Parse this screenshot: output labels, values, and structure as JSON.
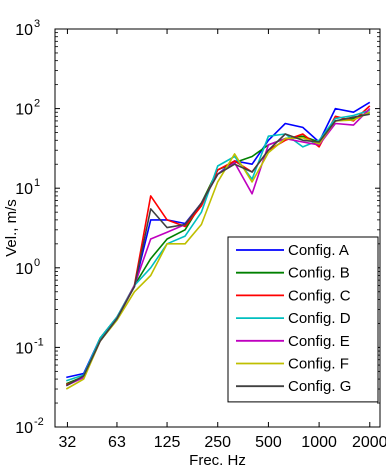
{
  "chart_data": {
    "type": "line",
    "xlabel": "Frec. Hz",
    "ylabel": "Vel., m/s",
    "xscale": "log",
    "yscale": "log",
    "xlim": [
      27,
      2300
    ],
    "ylim": [
      0.01,
      1000
    ],
    "grid": false,
    "legend_position": "bottom-right",
    "x_ticks": [
      32,
      63,
      125,
      250,
      500,
      1000,
      2000
    ],
    "x_tick_labels": [
      "32",
      "63",
      "125",
      "250",
      "500",
      "1000",
      "2000"
    ],
    "y_ticks": [
      0.01,
      0.1,
      1,
      10,
      100,
      1000
    ],
    "y_tick_labels": [
      {
        "base": "10",
        "exp": "-2"
      },
      {
        "base": "10",
        "exp": "-1"
      },
      {
        "base": "10",
        "exp": "0"
      },
      {
        "base": "10",
        "exp": "1"
      },
      {
        "base": "10",
        "exp": "2"
      },
      {
        "base": "10",
        "exp": "3"
      }
    ],
    "x": [
      31.5,
      40,
      50,
      63,
      80,
      100,
      125,
      160,
      200,
      250,
      315,
      400,
      500,
      630,
      800,
      1000,
      1250,
      1600,
      2000
    ],
    "series": [
      {
        "name": "Config. A",
        "color": "#0000ff",
        "values": [
          0.042,
          0.047,
          0.13,
          0.24,
          0.58,
          4.0,
          4.0,
          3.6,
          6.5,
          15,
          22,
          20,
          40,
          65,
          58,
          38,
          100,
          90,
          120
        ]
      },
      {
        "name": "Config. B",
        "color": "#008000",
        "values": [
          0.035,
          0.043,
          0.13,
          0.24,
          0.6,
          1.3,
          2.3,
          3.0,
          6.5,
          17,
          21,
          25,
          35,
          42,
          45,
          38,
          70,
          75,
          90
        ]
      },
      {
        "name": "Config. C",
        "color": "#ff0000",
        "values": [
          0.034,
          0.042,
          0.12,
          0.23,
          0.6,
          8.0,
          4.0,
          3.3,
          6.0,
          17,
          22,
          16,
          30,
          40,
          48,
          33,
          80,
          70,
          108
        ]
      },
      {
        "name": "Config. D",
        "color": "#00bfbf",
        "values": [
          0.038,
          0.045,
          0.13,
          0.24,
          0.6,
          1.0,
          2.0,
          2.5,
          5.0,
          19,
          25,
          13,
          45,
          48,
          33,
          40,
          75,
          82,
          95
        ]
      },
      {
        "name": "Config. E",
        "color": "#bf00bf",
        "values": [
          0.033,
          0.042,
          0.12,
          0.23,
          0.6,
          2.3,
          2.8,
          3.5,
          6.5,
          15,
          21,
          8.5,
          35,
          42,
          38,
          35,
          65,
          62,
          100
        ]
      },
      {
        "name": "Config. F",
        "color": "#bfbf00",
        "values": [
          0.03,
          0.04,
          0.12,
          0.22,
          0.5,
          0.8,
          2.0,
          2.0,
          3.5,
          12,
          27,
          12,
          28,
          42,
          43,
          36,
          70,
          72,
          90
        ]
      },
      {
        "name": "Config. G",
        "color": "#404040",
        "values": [
          0.033,
          0.044,
          0.12,
          0.23,
          0.58,
          5.5,
          3.2,
          3.5,
          6.5,
          15,
          20,
          16,
          30,
          48,
          40,
          38,
          70,
          78,
          85
        ]
      }
    ]
  }
}
